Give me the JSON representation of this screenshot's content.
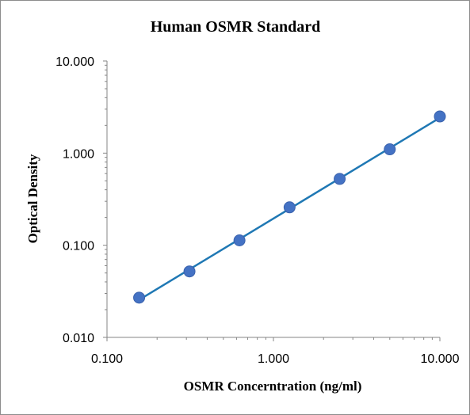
{
  "chart_data": {
    "type": "scatter",
    "title": "Human OSMR Standard",
    "xlabel": "OSMR Concerntration (ng/ml)",
    "ylabel": "Optical Density",
    "xscale": "log",
    "yscale": "log",
    "xlim": [
      0.1,
      10
    ],
    "ylim": [
      0.01,
      10
    ],
    "x_ticks": [
      0.1,
      1,
      10
    ],
    "x_tick_labels": [
      "0.100",
      "1.000",
      "10.000"
    ],
    "y_ticks": [
      0.01,
      0.1,
      1,
      10
    ],
    "y_tick_labels": [
      "0.010",
      "0.100",
      "1.000",
      "10.000"
    ],
    "grid": false,
    "legend": "none",
    "series": [
      {
        "x": [
          0.156,
          0.313,
          0.625,
          1.25,
          2.5,
          5,
          10
        ],
        "y": [
          0.027,
          0.052,
          0.113,
          0.258,
          0.525,
          1.1,
          2.5
        ],
        "marker_color": "#4472c4",
        "line_color": "#1f78b4"
      }
    ]
  }
}
